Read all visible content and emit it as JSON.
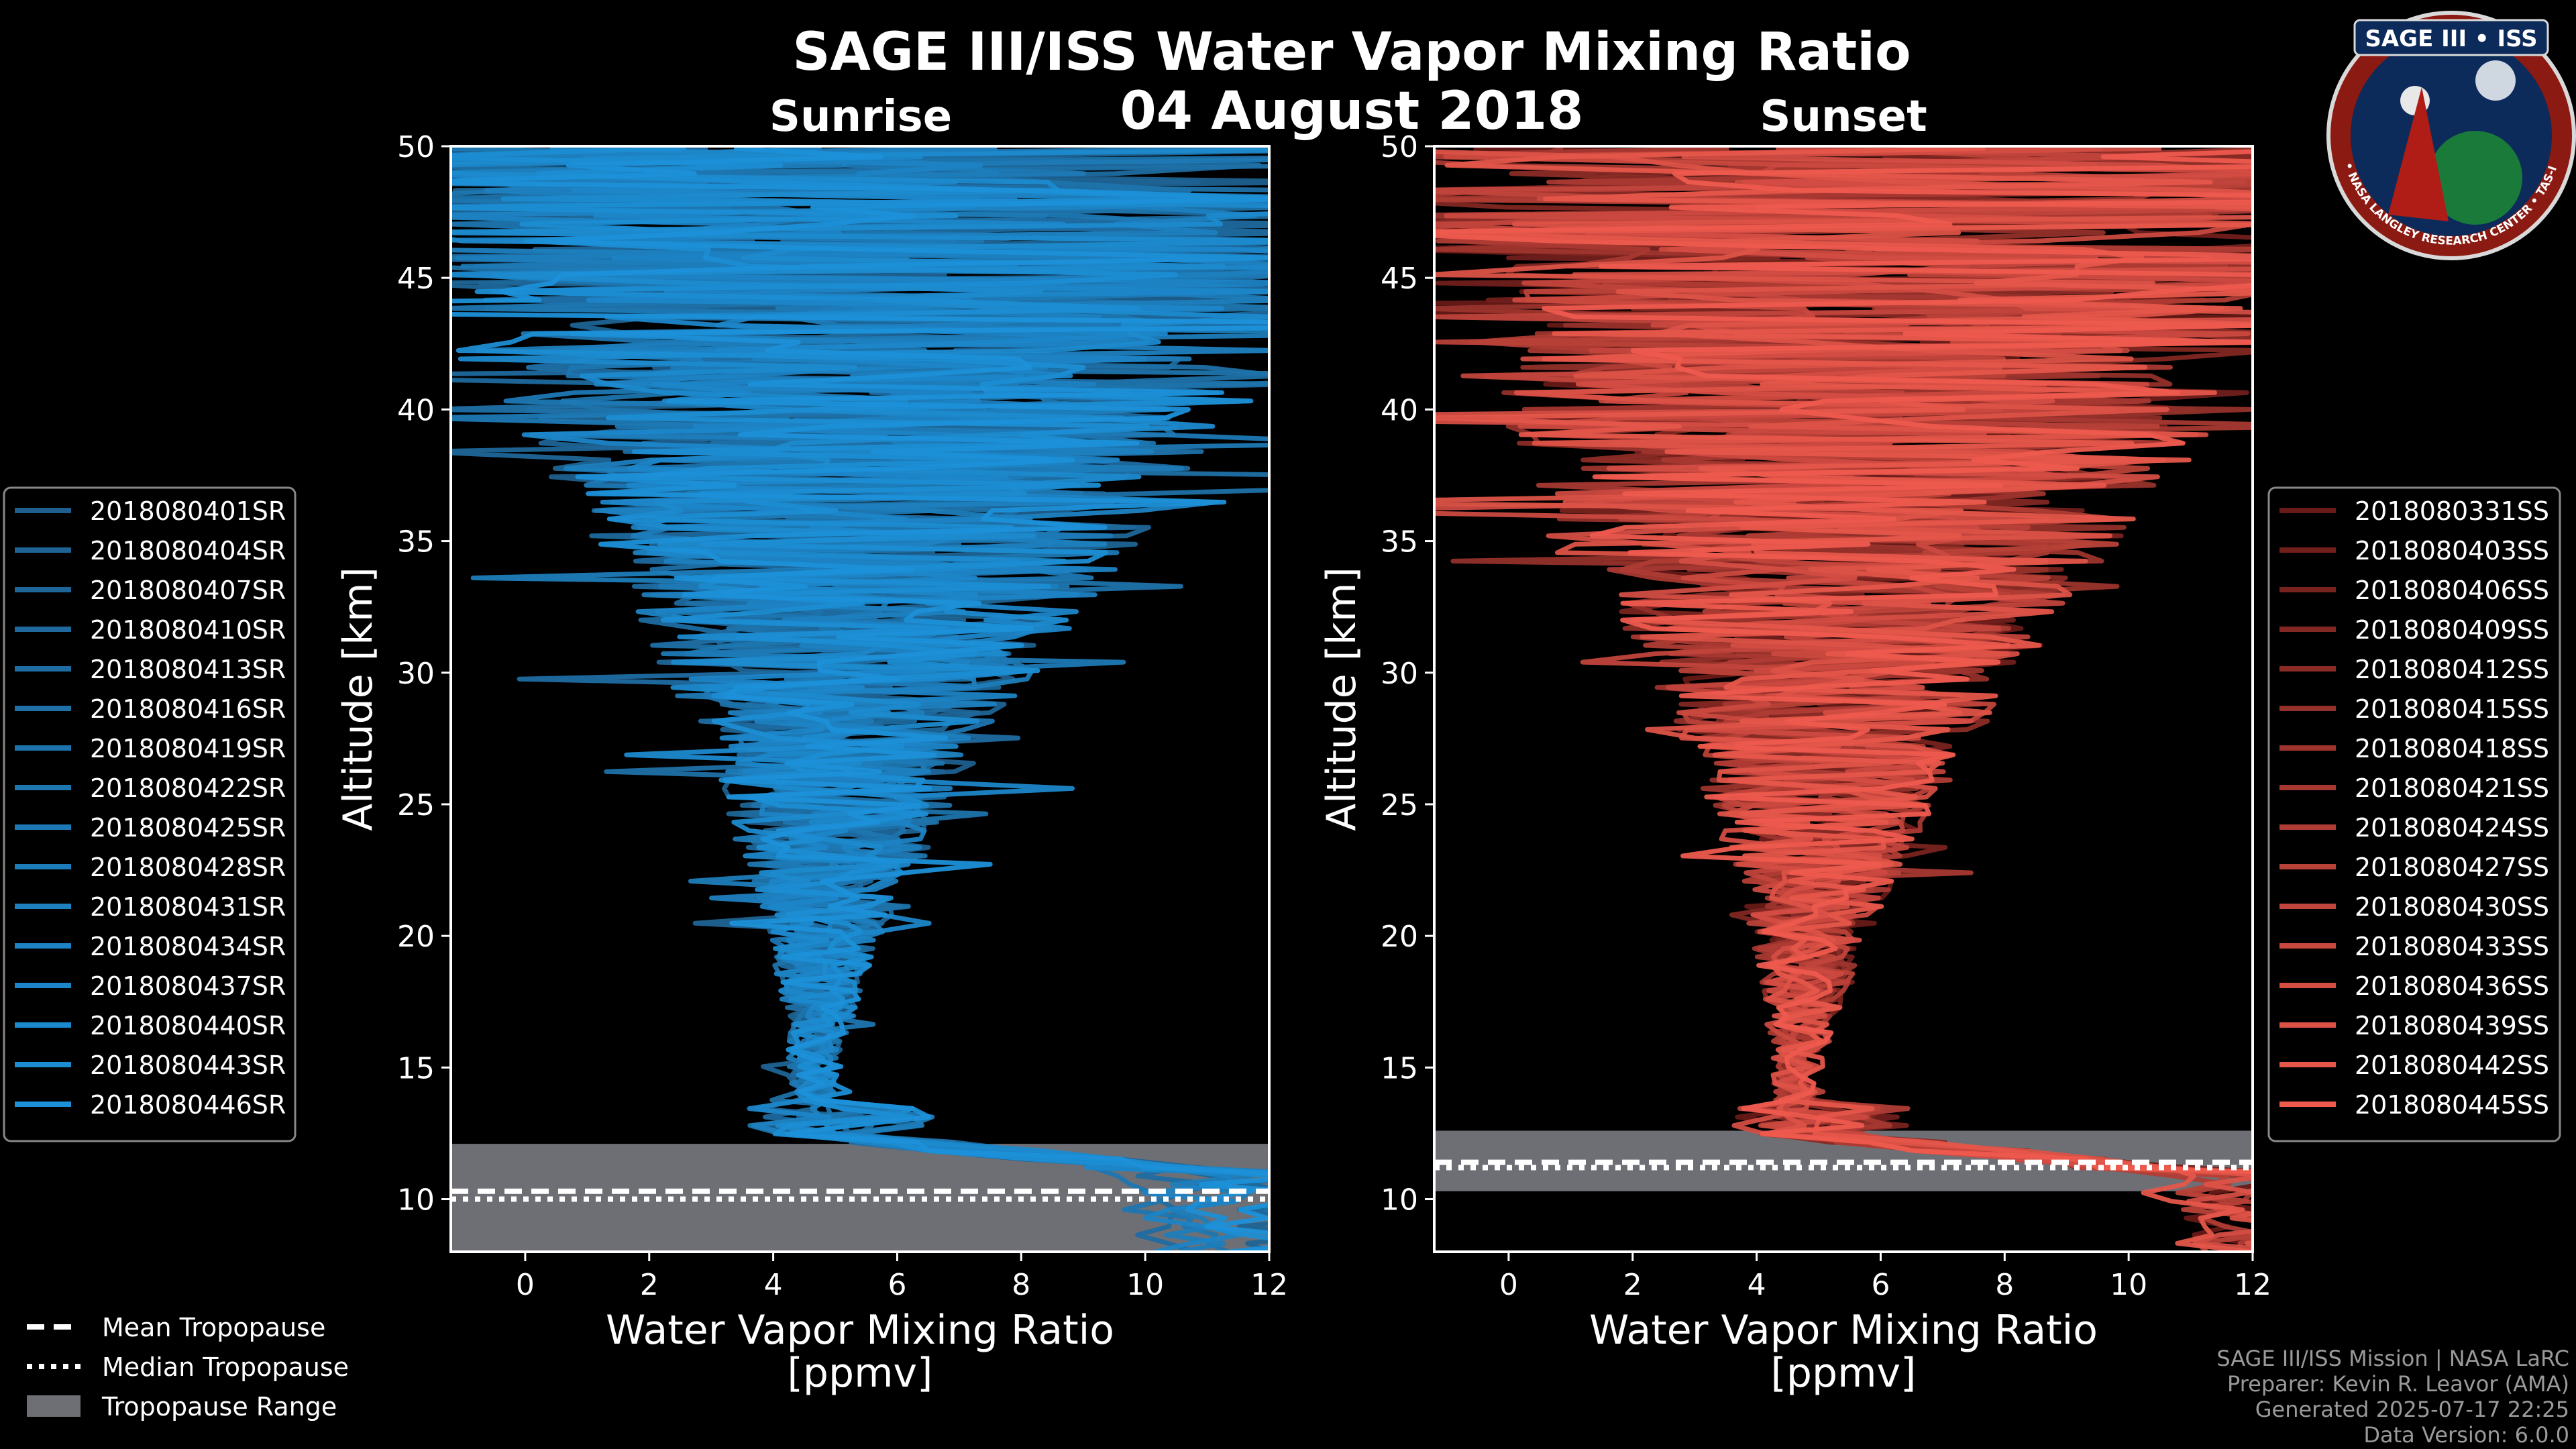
{
  "title": "SAGE III/ISS Water Vapor Mixing Ratio",
  "date": "04 August 2018",
  "logo": {
    "text": "SAGE III • ISS",
    "ring_text": "BALL • NASA LANGLEY RESEARCH CENTER • TAS-I • ESA"
  },
  "credits": [
    "SAGE III/ISS Mission | NASA LaRC",
    "Preparer: Kevin R. Leavor (AMA)",
    "Generated 2025-07-17 22:25",
    "Data Version: 6.0.0"
  ],
  "bottom_legend": [
    {
      "label": "Mean Tropopause",
      "style": "dashed"
    },
    {
      "label": "Median Tropopause",
      "style": "dotted"
    },
    {
      "label": "Tropopause Range",
      "style": "patch"
    }
  ],
  "chart_data": [
    {
      "type": "line",
      "panel": "left",
      "title": "Sunrise",
      "xlabel": "Water Vapor Mixing Ratio\n[ppmv]",
      "ylabel": "Altitude [km]",
      "xlim": [
        -1.2,
        12
      ],
      "ylim": [
        8,
        50
      ],
      "xticks": [
        0,
        2,
        4,
        6,
        8,
        10,
        12
      ],
      "yticks": [
        10,
        15,
        20,
        25,
        30,
        35,
        40,
        45,
        50
      ],
      "tropopause": {
        "range": [
          8,
          12.1
        ],
        "mean": 10.3,
        "median": 10.0
      },
      "color_dark": "#1f4f75",
      "color_light": "#1c90d8",
      "legend_position": "left",
      "series": [
        {
          "name": "2018080401SR"
        },
        {
          "name": "2018080404SR"
        },
        {
          "name": "2018080407SR"
        },
        {
          "name": "2018080410SR"
        },
        {
          "name": "2018080413SR"
        },
        {
          "name": "2018080416SR"
        },
        {
          "name": "2018080419SR"
        },
        {
          "name": "2018080422SR"
        },
        {
          "name": "2018080425SR"
        },
        {
          "name": "2018080428SR"
        },
        {
          "name": "2018080431SR"
        },
        {
          "name": "2018080434SR"
        },
        {
          "name": "2018080437SR"
        },
        {
          "name": "2018080440SR"
        },
        {
          "name": "2018080443SR"
        },
        {
          "name": "2018080446SR"
        }
      ]
    },
    {
      "type": "line",
      "panel": "right",
      "title": "Sunset",
      "xlabel": "Water Vapor Mixing Ratio\n[ppmv]",
      "ylabel": "Altitude [km]",
      "xlim": [
        -1.2,
        12
      ],
      "ylim": [
        8,
        50
      ],
      "xticks": [
        0,
        2,
        4,
        6,
        8,
        10,
        12
      ],
      "yticks": [
        10,
        15,
        20,
        25,
        30,
        35,
        40,
        45,
        50
      ],
      "tropopause": {
        "range": [
          10.3,
          12.6
        ],
        "mean": 11.4,
        "median": 11.2
      },
      "color_dark": "#3a0505",
      "color_light": "#ee5a4e",
      "legend_position": "right",
      "series": [
        {
          "name": "2018080331SS"
        },
        {
          "name": "2018080403SS"
        },
        {
          "name": "2018080406SS"
        },
        {
          "name": "2018080409SS"
        },
        {
          "name": "2018080412SS"
        },
        {
          "name": "2018080415SS"
        },
        {
          "name": "2018080418SS"
        },
        {
          "name": "2018080421SS"
        },
        {
          "name": "2018080424SS"
        },
        {
          "name": "2018080427SS"
        },
        {
          "name": "2018080430SS"
        },
        {
          "name": "2018080433SS"
        },
        {
          "name": "2018080436SS"
        },
        {
          "name": "2018080439SS"
        },
        {
          "name": "2018080442SS"
        },
        {
          "name": "2018080445SS"
        }
      ]
    }
  ]
}
